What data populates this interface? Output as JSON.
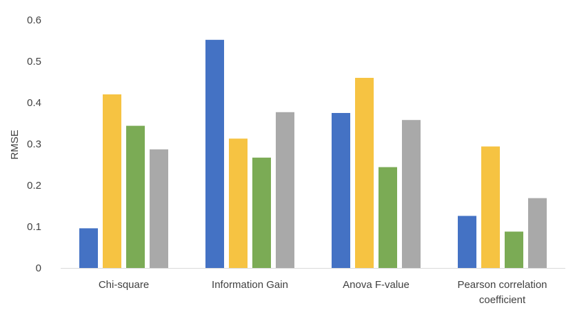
{
  "chart_data": {
    "type": "bar",
    "title": "",
    "xlabel": "",
    "ylabel": "RMSE",
    "ylim": [
      0,
      0.6
    ],
    "yticks": [
      "0",
      "0.1",
      "0.2",
      "0.3",
      "0.4",
      "0.5",
      "0.6"
    ],
    "grid": false,
    "legend": "none",
    "categories": [
      [
        "Chi-square"
      ],
      [
        "Information Gain"
      ],
      [
        "Anova F-value"
      ],
      [
        "Pearson correlation",
        "coefficient"
      ]
    ],
    "series": [
      {
        "color": "#4472C4",
        "values": [
          0.096,
          0.552,
          0.375,
          0.126
        ]
      },
      {
        "color": "#F6C342",
        "values": [
          0.42,
          0.313,
          0.46,
          0.294
        ]
      },
      {
        "color": "#7BAB55",
        "values": [
          0.344,
          0.267,
          0.244,
          0.088
        ]
      },
      {
        "color": "#A9A9A9",
        "values": [
          0.287,
          0.377,
          0.358,
          0.169
        ]
      }
    ]
  }
}
